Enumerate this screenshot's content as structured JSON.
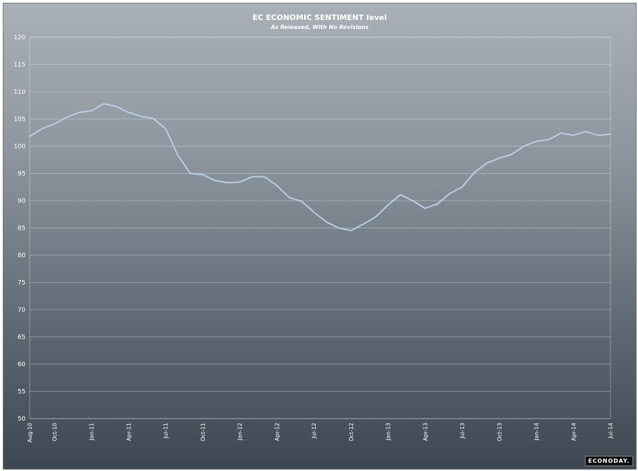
{
  "chart_data": {
    "type": "line",
    "title": "EC ECONOMIC SENTIMENT level",
    "subtitle": "As Released, With No Revisions",
    "xlabel": "",
    "ylabel": "",
    "ylim": [
      50,
      120
    ],
    "yticks": [
      50,
      55,
      60,
      65,
      70,
      75,
      80,
      85,
      90,
      95,
      100,
      105,
      110,
      115,
      120
    ],
    "xtick_labels": [
      "Aug-10",
      "Oct-10",
      "Jan-11",
      "Apr-11",
      "Jul-11",
      "Oct-11",
      "Jan-12",
      "Apr-12",
      "Jul-12",
      "Oct-12",
      "Jan-13",
      "Apr-13",
      "Jul-13",
      "Oct-13",
      "Jan-14",
      "Apr-14",
      "Jul-14"
    ],
    "xtick_index": [
      0,
      2,
      5,
      8,
      11,
      14,
      17,
      20,
      23,
      26,
      29,
      32,
      35,
      38,
      41,
      44,
      47
    ],
    "grid": true,
    "legend": "none",
    "series": [
      {
        "name": "EC Economic Sentiment",
        "color": "#b8d0e6",
        "values": [
          101.8,
          103.2,
          104.1,
          105.3,
          106.2,
          106.5,
          107.8,
          107.3,
          106.2,
          105.5,
          105.1,
          103.2,
          98.3,
          95.0,
          94.8,
          93.7,
          93.3,
          93.4,
          94.4,
          94.4,
          92.8,
          90.6,
          89.9,
          87.9,
          86.1,
          85.0,
          84.5,
          85.7,
          87.0,
          89.2,
          91.1,
          90.0,
          88.6,
          89.4,
          91.3,
          92.5,
          95.2,
          96.9,
          97.8,
          98.5,
          100.0,
          100.9,
          101.2,
          102.4,
          102.0,
          102.7,
          102.0,
          102.2
        ]
      }
    ]
  },
  "logo_text": "ECONODAY."
}
